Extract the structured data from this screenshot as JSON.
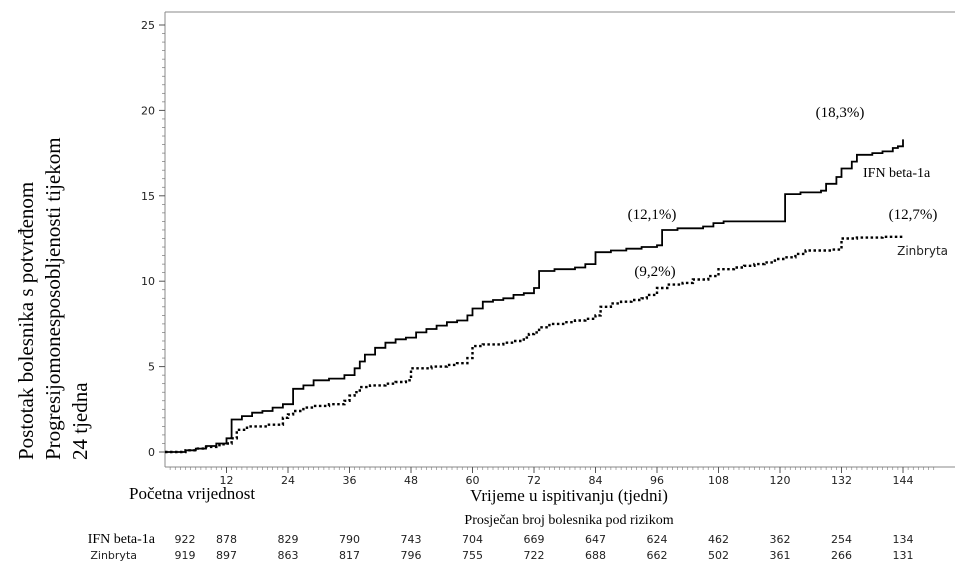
{
  "chart_data": {
    "type": "line",
    "ylabel_lines": [
      "Postotak bolesnika s potvrđenom",
      "Progresijomonesposobljenosti tijekom",
      "24 tjedna"
    ],
    "xlabel": "Vrijeme u ispitivanju (tjedni)",
    "baseline_label": "Početna vrijednost",
    "xlim": [
      0,
      150
    ],
    "ylim": [
      0,
      25
    ],
    "x_ticks": [
      12,
      24,
      36,
      48,
      60,
      72,
      84,
      96,
      108,
      120,
      132,
      144
    ],
    "y_ticks": [
      0,
      5,
      10,
      15,
      20,
      25
    ],
    "series": [
      {
        "name": "IFN beta-1a",
        "style": "solid",
        "end_label": "(18,3%)",
        "mid_label": "(12,1%)",
        "points": [
          [
            0,
            0
          ],
          [
            4,
            0.1
          ],
          [
            6,
            0.2
          ],
          [
            8,
            0.35
          ],
          [
            10,
            0.5
          ],
          [
            12,
            0.8
          ],
          [
            13,
            1.9
          ],
          [
            15,
            2.1
          ],
          [
            17,
            2.3
          ],
          [
            19,
            2.4
          ],
          [
            21,
            2.6
          ],
          [
            23,
            2.8
          ],
          [
            25,
            3.7
          ],
          [
            27,
            3.9
          ],
          [
            29,
            4.2
          ],
          [
            32,
            4.3
          ],
          [
            35,
            4.5
          ],
          [
            37,
            4.9
          ],
          [
            38,
            5.3
          ],
          [
            39,
            5.7
          ],
          [
            41,
            6.1
          ],
          [
            43,
            6.4
          ],
          [
            45,
            6.6
          ],
          [
            47,
            6.7
          ],
          [
            49,
            7.0
          ],
          [
            51,
            7.2
          ],
          [
            53,
            7.4
          ],
          [
            55,
            7.6
          ],
          [
            57,
            7.7
          ],
          [
            59,
            8.0
          ],
          [
            60,
            8.4
          ],
          [
            62,
            8.8
          ],
          [
            64,
            8.9
          ],
          [
            66,
            9.0
          ],
          [
            68,
            9.2
          ],
          [
            70,
            9.3
          ],
          [
            72,
            9.6
          ],
          [
            73,
            10.6
          ],
          [
            76,
            10.7
          ],
          [
            80,
            10.8
          ],
          [
            82,
            11.0
          ],
          [
            84,
            11.7
          ],
          [
            87,
            11.8
          ],
          [
            90,
            11.9
          ],
          [
            93,
            12.0
          ],
          [
            96,
            12.1
          ],
          [
            97,
            13.0
          ],
          [
            100,
            13.1
          ],
          [
            105,
            13.2
          ],
          [
            107,
            13.4
          ],
          [
            109,
            13.5
          ],
          [
            118,
            13.5
          ],
          [
            121,
            15.1
          ],
          [
            124,
            15.2
          ],
          [
            128,
            15.3
          ],
          [
            129,
            15.7
          ],
          [
            131,
            16.1
          ],
          [
            132,
            16.6
          ],
          [
            134,
            17.0
          ],
          [
            135,
            17.4
          ],
          [
            138,
            17.5
          ],
          [
            140,
            17.6
          ],
          [
            142,
            17.8
          ],
          [
            143,
            17.9
          ],
          [
            144,
            18.3
          ]
        ]
      },
      {
        "name": "Zinbryta",
        "style": "dotted",
        "end_label": "(12,7%)",
        "mid_label": "(9,2%)",
        "points": [
          [
            0,
            0
          ],
          [
            4,
            0.1
          ],
          [
            6,
            0.2
          ],
          [
            8,
            0.3
          ],
          [
            10,
            0.4
          ],
          [
            11,
            0.45
          ],
          [
            12,
            0.5
          ],
          [
            13,
            0.8
          ],
          [
            14,
            1.3
          ],
          [
            16,
            1.5
          ],
          [
            20,
            1.6
          ],
          [
            23,
            2.0
          ],
          [
            24,
            2.2
          ],
          [
            25,
            2.4
          ],
          [
            27,
            2.6
          ],
          [
            29,
            2.7
          ],
          [
            32,
            2.8
          ],
          [
            35,
            3.0
          ],
          [
            36,
            3.3
          ],
          [
            37,
            3.5
          ],
          [
            38,
            3.8
          ],
          [
            40,
            3.9
          ],
          [
            43,
            4.0
          ],
          [
            45,
            4.1
          ],
          [
            47,
            4.2
          ],
          [
            48,
            4.9
          ],
          [
            52,
            5.0
          ],
          [
            55,
            5.1
          ],
          [
            57,
            5.2
          ],
          [
            59,
            5.5
          ],
          [
            60,
            6.2
          ],
          [
            62,
            6.3
          ],
          [
            66,
            6.4
          ],
          [
            68,
            6.5
          ],
          [
            70,
            6.7
          ],
          [
            71,
            6.9
          ],
          [
            72,
            7.0
          ],
          [
            73,
            7.3
          ],
          [
            75,
            7.5
          ],
          [
            78,
            7.6
          ],
          [
            80,
            7.7
          ],
          [
            82,
            7.8
          ],
          [
            84,
            8.0
          ],
          [
            85,
            8.5
          ],
          [
            87,
            8.7
          ],
          [
            89,
            8.8
          ],
          [
            91,
            8.9
          ],
          [
            93,
            9.0
          ],
          [
            94,
            9.2
          ],
          [
            96,
            9.6
          ],
          [
            98,
            9.8
          ],
          [
            101,
            9.9
          ],
          [
            103,
            10.1
          ],
          [
            106,
            10.3
          ],
          [
            108,
            10.7
          ],
          [
            111,
            10.8
          ],
          [
            113,
            10.9
          ],
          [
            115,
            11.0
          ],
          [
            117,
            11.1
          ],
          [
            119,
            11.3
          ],
          [
            121,
            11.4
          ],
          [
            123,
            11.6
          ],
          [
            125,
            11.8
          ],
          [
            130,
            11.85
          ],
          [
            132,
            12.5
          ],
          [
            135,
            12.55
          ],
          [
            140,
            12.6
          ],
          [
            144,
            12.7
          ]
        ]
      }
    ]
  },
  "risk_table": {
    "title": "Prosječan broj bolesnika pod rizikom",
    "rows": [
      {
        "label": "IFN beta-1a",
        "values": [
          "922",
          "878",
          "829",
          "790",
          "743",
          "704",
          "669",
          "647",
          "624",
          "462",
          "362",
          "254",
          "134"
        ]
      },
      {
        "label": "Zinbryta",
        "values": [
          "919",
          "897",
          "863",
          "817",
          "796",
          "755",
          "722",
          "688",
          "662",
          "502",
          "361",
          "266",
          "131"
        ]
      }
    ]
  }
}
